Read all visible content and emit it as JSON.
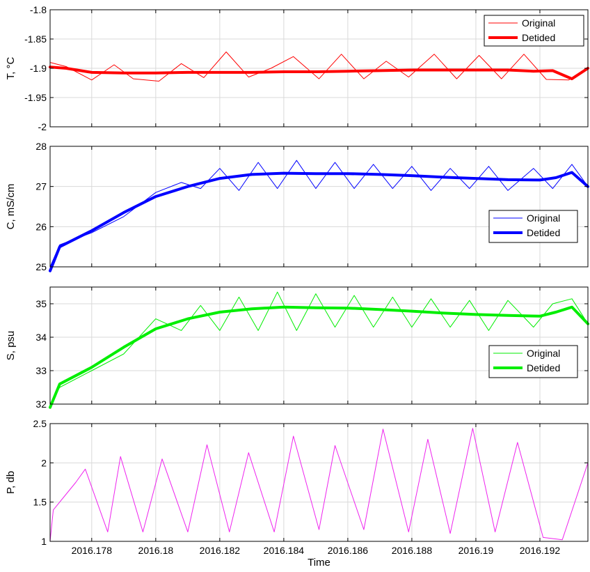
{
  "chart_data": [
    {
      "type": "line",
      "title": "",
      "ylabel": "T, °C",
      "ylim": [
        -2,
        -1.8
      ],
      "yticks": [
        "-1.8",
        "-1.85",
        "-1.9",
        "-1.95",
        "-2"
      ],
      "ytick_values": [
        -1.8,
        -1.85,
        -1.9,
        -1.95,
        -2
      ],
      "xlim": [
        2016.1767,
        2016.1935
      ],
      "grid": true,
      "legend": "top-right",
      "series": [
        {
          "name": "Original",
          "color": "#ff0000",
          "width": 1,
          "x": [
            2016.1767,
            2016.1772,
            2016.178,
            2016.1787,
            2016.1793,
            2016.1801,
            2016.1808,
            2016.1815,
            2016.1822,
            2016.1829,
            2016.1836,
            2016.1843,
            2016.1851,
            2016.1858,
            2016.1865,
            2016.1872,
            2016.1879,
            2016.1887,
            2016.1894,
            2016.1901,
            2016.1908,
            2016.1915,
            2016.1922,
            2016.1929,
            2016.1935
          ],
          "y": [
            -1.89,
            -1.897,
            -1.92,
            -1.894,
            -1.918,
            -1.922,
            -1.892,
            -1.916,
            -1.872,
            -1.915,
            -1.9,
            -1.88,
            -1.918,
            -1.876,
            -1.918,
            -1.888,
            -1.915,
            -1.876,
            -1.918,
            -1.878,
            -1.918,
            -1.876,
            -1.919,
            -1.92,
            -1.898
          ]
        },
        {
          "name": "Detided",
          "color": "#ff0000",
          "width": 4,
          "x": [
            2016.1767,
            2016.1772,
            2016.178,
            2016.179,
            2016.18,
            2016.181,
            2016.182,
            2016.183,
            2016.184,
            2016.185,
            2016.186,
            2016.187,
            2016.188,
            2016.189,
            2016.19,
            2016.191,
            2016.1918,
            2016.1924,
            2016.193,
            2016.1935
          ],
          "y": [
            -1.898,
            -1.9,
            -1.907,
            -1.908,
            -1.908,
            -1.907,
            -1.907,
            -1.907,
            -1.906,
            -1.906,
            -1.905,
            -1.904,
            -1.903,
            -1.903,
            -1.903,
            -1.903,
            -1.905,
            -1.904,
            -1.918,
            -1.9
          ]
        }
      ]
    },
    {
      "type": "line",
      "title": "",
      "ylabel": "C, mS/cm",
      "ylim": [
        25,
        28
      ],
      "yticks": [
        "28",
        "27",
        "26",
        "25"
      ],
      "ytick_values": [
        28,
        27,
        26,
        25
      ],
      "xlim": [
        2016.1767,
        2016.1935
      ],
      "grid": true,
      "legend": "center-right",
      "series": [
        {
          "name": "Original",
          "color": "#0000ff",
          "width": 1,
          "x": [
            2016.1767,
            2016.177,
            2016.178,
            2016.179,
            2016.18,
            2016.1808,
            2016.1814,
            2016.182,
            2016.1826,
            2016.1832,
            2016.1838,
            2016.1844,
            2016.185,
            2016.1856,
            2016.1862,
            2016.1868,
            2016.1874,
            2016.188,
            2016.1886,
            2016.1892,
            2016.1898,
            2016.1904,
            2016.191,
            2016.1918,
            2016.1924,
            2016.193,
            2016.1935
          ],
          "y": [
            25.0,
            25.55,
            25.85,
            26.25,
            26.85,
            27.1,
            26.95,
            27.45,
            26.9,
            27.6,
            26.95,
            27.65,
            26.95,
            27.6,
            26.95,
            27.55,
            26.95,
            27.5,
            26.9,
            27.45,
            26.95,
            27.5,
            26.9,
            27.45,
            26.95,
            27.55,
            27.0
          ]
        },
        {
          "name": "Detided",
          "color": "#0000ff",
          "width": 4,
          "x": [
            2016.1767,
            2016.177,
            2016.178,
            2016.179,
            2016.18,
            2016.181,
            2016.182,
            2016.183,
            2016.184,
            2016.185,
            2016.186,
            2016.187,
            2016.188,
            2016.189,
            2016.19,
            2016.191,
            2016.192,
            2016.1925,
            2016.193,
            2016.1935
          ],
          "y": [
            24.9,
            25.5,
            25.9,
            26.35,
            26.75,
            27.0,
            27.2,
            27.3,
            27.33,
            27.32,
            27.32,
            27.3,
            27.27,
            27.23,
            27.2,
            27.17,
            27.16,
            27.22,
            27.35,
            27.0
          ]
        }
      ]
    },
    {
      "type": "line",
      "title": "",
      "ylabel": "S, psu",
      "ylim": [
        32,
        35.5
      ],
      "yticks": [
        "35",
        "34",
        "33",
        "32"
      ],
      "ytick_values": [
        35,
        34,
        33,
        32
      ],
      "xlim": [
        2016.1767,
        2016.1935
      ],
      "grid": true,
      "legend": "center-right",
      "series": [
        {
          "name": "Original",
          "color": "#00ee00",
          "width": 1,
          "x": [
            2016.1767,
            2016.177,
            2016.178,
            2016.179,
            2016.18,
            2016.1808,
            2016.1814,
            2016.182,
            2016.1826,
            2016.1832,
            2016.1838,
            2016.1844,
            2016.185,
            2016.1856,
            2016.1862,
            2016.1868,
            2016.1874,
            2016.188,
            2016.1886,
            2016.1892,
            2016.1898,
            2016.1904,
            2016.191,
            2016.1918,
            2016.1924,
            2016.193,
            2016.1935
          ],
          "y": [
            32.0,
            32.5,
            33.0,
            33.5,
            34.55,
            34.2,
            34.95,
            34.2,
            35.2,
            34.2,
            35.35,
            34.2,
            35.3,
            34.3,
            35.25,
            34.3,
            35.2,
            34.3,
            35.15,
            34.3,
            35.1,
            34.2,
            35.1,
            34.3,
            35.0,
            35.15,
            34.4
          ]
        },
        {
          "name": "Detided",
          "color": "#00ee00",
          "width": 4,
          "x": [
            2016.1767,
            2016.177,
            2016.178,
            2016.179,
            2016.18,
            2016.181,
            2016.182,
            2016.183,
            2016.184,
            2016.185,
            2016.186,
            2016.187,
            2016.188,
            2016.189,
            2016.19,
            2016.191,
            2016.192,
            2016.1925,
            2016.193,
            2016.1935
          ],
          "y": [
            31.9,
            32.6,
            33.1,
            33.7,
            34.25,
            34.55,
            34.75,
            34.85,
            34.9,
            34.88,
            34.87,
            34.83,
            34.78,
            34.72,
            34.68,
            34.65,
            34.63,
            34.75,
            34.9,
            34.4
          ]
        }
      ]
    },
    {
      "type": "line",
      "title": "",
      "ylabel": "P, db",
      "xlabel": "Time",
      "ylim": [
        1,
        2.5
      ],
      "yticks": [
        "2.5",
        "2",
        "1.5",
        "1"
      ],
      "ytick_values": [
        2.5,
        2,
        1.5,
        1
      ],
      "xlim": [
        2016.1767,
        2016.1935
      ],
      "xticks": [
        "2016.178",
        "2016.18",
        "2016.182",
        "2016.184",
        "2016.186",
        "2016.188",
        "2016.19",
        "2016.192"
      ],
      "xtick_values": [
        2016.178,
        2016.18,
        2016.182,
        2016.184,
        2016.186,
        2016.188,
        2016.19,
        2016.192
      ],
      "grid": true,
      "series": [
        {
          "name": "",
          "color": "#ee22ee",
          "width": 1,
          "x": [
            2016.1767,
            2016.1768,
            2016.1771,
            2016.1775,
            2016.1778,
            2016.1785,
            2016.1789,
            2016.1796,
            2016.1802,
            2016.181,
            2016.1816,
            2016.1823,
            2016.1829,
            2016.1837,
            2016.1843,
            2016.1851,
            2016.1856,
            2016.1865,
            2016.1871,
            2016.1879,
            2016.1885,
            2016.1892,
            2016.1899,
            2016.1906,
            2016.1913,
            2016.1921,
            2016.1927,
            2016.1935
          ],
          "y": [
            1.0,
            1.4,
            1.55,
            1.75,
            1.92,
            1.12,
            2.08,
            1.12,
            2.05,
            1.12,
            2.23,
            1.12,
            2.13,
            1.12,
            2.34,
            1.15,
            2.22,
            1.15,
            2.43,
            1.12,
            2.3,
            1.1,
            2.44,
            1.12,
            2.26,
            1.05,
            1.02,
            2.0
          ]
        }
      ]
    }
  ]
}
